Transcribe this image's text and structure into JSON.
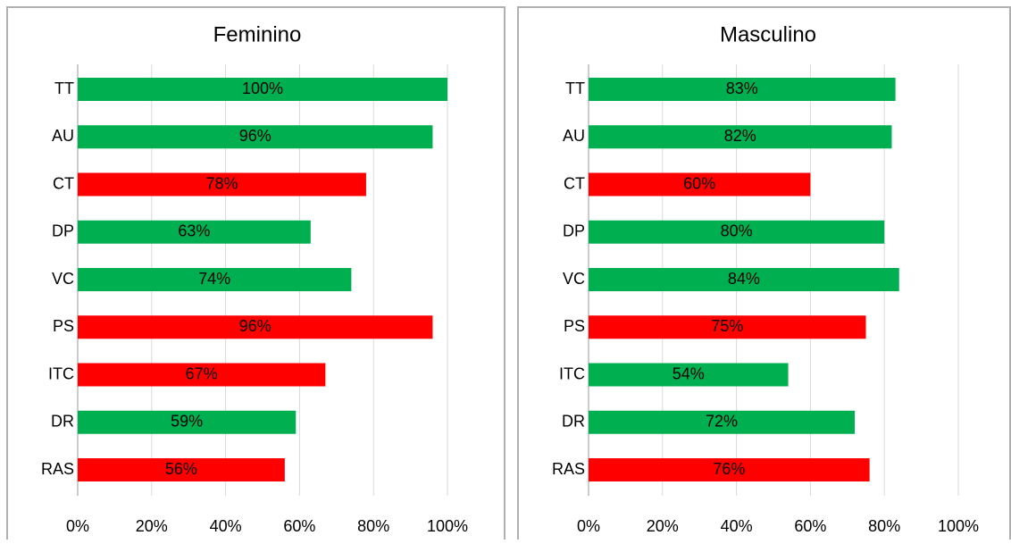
{
  "chart_data": [
    {
      "type": "bar",
      "orientation": "horizontal",
      "title": "Feminino",
      "categories": [
        "TT",
        "AU",
        "CT",
        "DP",
        "VC",
        "PS",
        "ITC",
        "DR",
        "RAS"
      ],
      "values": [
        100,
        96,
        78,
        63,
        74,
        96,
        67,
        59,
        56
      ],
      "value_labels": [
        "100%",
        "96%",
        "78%",
        "63%",
        "74%",
        "96%",
        "67%",
        "59%",
        "56%"
      ],
      "colors": [
        "#00b050",
        "#00b050",
        "#ff0000",
        "#00b050",
        "#00b050",
        "#ff0000",
        "#ff0000",
        "#00b050",
        "#ff0000"
      ],
      "xlim": [
        0,
        100
      ],
      "xticks": [
        {
          "value": 0,
          "label": "0%"
        },
        {
          "value": 20,
          "label": "20%"
        },
        {
          "value": 40,
          "label": "40%"
        },
        {
          "value": 60,
          "label": "60%"
        },
        {
          "value": 80,
          "label": "80%"
        },
        {
          "value": 100,
          "label": "100%"
        }
      ],
      "grid": true
    },
    {
      "type": "bar",
      "orientation": "horizontal",
      "title": "Masculino",
      "categories": [
        "TT",
        "AU",
        "CT",
        "DP",
        "VC",
        "PS",
        "ITC",
        "DR",
        "RAS"
      ],
      "values": [
        83,
        82,
        60,
        80,
        84,
        75,
        54,
        72,
        76
      ],
      "value_labels": [
        "83%",
        "82%",
        "60%",
        "80%",
        "84%",
        "75%",
        "54%",
        "72%",
        "76%"
      ],
      "colors": [
        "#00b050",
        "#00b050",
        "#ff0000",
        "#00b050",
        "#00b050",
        "#ff0000",
        "#00b050",
        "#00b050",
        "#ff0000"
      ],
      "xlim": [
        0,
        100
      ],
      "xticks": [
        {
          "value": 0,
          "label": "0%"
        },
        {
          "value": 20,
          "label": "20%"
        },
        {
          "value": 40,
          "label": "40%"
        },
        {
          "value": 60,
          "label": "60%"
        },
        {
          "value": 80,
          "label": "80%"
        },
        {
          "value": 100,
          "label": "100%"
        }
      ],
      "grid": true
    }
  ]
}
